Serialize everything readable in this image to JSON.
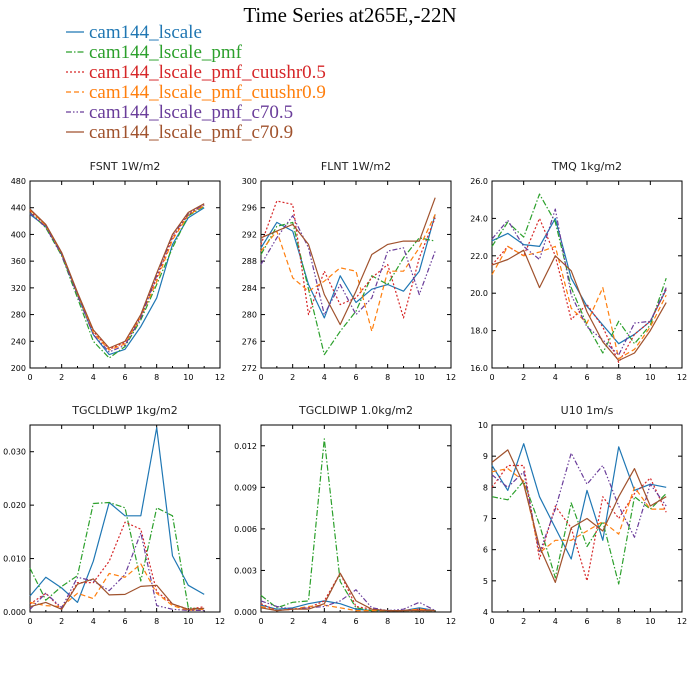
{
  "figure_title": "Time Series at265E,-22N",
  "legend": [
    {
      "label": "cam144_lscale",
      "color": "#1f77b4",
      "dash": "solid"
    },
    {
      "label": "cam144_lscale_pmf",
      "color": "#2ca02c",
      "dash": "dashdot"
    },
    {
      "label": "cam144_lscale_pmf_cuushr0.5",
      "color": "#d62728",
      "dash": "dot"
    },
    {
      "label": "cam144_lscale_pmf_cuushr0.9",
      "color": "#ff7f0e",
      "dash": "dash"
    },
    {
      "label": "cam144_lscale_pmf_c70.5",
      "color": "#6a3d9a",
      "dash": "dashdot2"
    },
    {
      "label": "cam144_lscale_pmf_c70.9",
      "color": "#a0522d",
      "dash": "solid"
    }
  ],
  "chart_data": [
    {
      "type": "line",
      "title": "FSNT   1W/m2",
      "xlim": [
        0,
        12
      ],
      "ylim": [
        200,
        480
      ],
      "xticks": [
        0,
        2,
        4,
        6,
        8,
        10,
        12
      ],
      "yticks": [
        200,
        240,
        280,
        320,
        360,
        400,
        440,
        480
      ],
      "ytick_labels": [
        "200",
        "240",
        "280",
        "320",
        "360",
        "400",
        "440",
        "480"
      ],
      "x": [
        0,
        1,
        2,
        3,
        4,
        5,
        6,
        7,
        8,
        9,
        10,
        11
      ],
      "series": [
        {
          "name": "cam144_lscale",
          "values": [
            430,
            412,
            370,
            310,
            250,
            220,
            228,
            262,
            305,
            385,
            425,
            440
          ]
        },
        {
          "name": "cam144_lscale_pmf",
          "values": [
            433,
            410,
            368,
            305,
            240,
            215,
            232,
            272,
            325,
            380,
            428,
            442
          ]
        },
        {
          "name": "cam144_lscale_pmf_cuushr0.5",
          "values": [
            435,
            414,
            372,
            312,
            255,
            228,
            238,
            278,
            335,
            395,
            430,
            444
          ]
        },
        {
          "name": "cam144_lscale_pmf_cuushr0.9",
          "values": [
            437,
            413,
            371,
            311,
            253,
            227,
            236,
            276,
            330,
            392,
            429,
            443
          ]
        },
        {
          "name": "cam144_lscale_pmf_c70.5",
          "values": [
            432,
            411,
            369,
            309,
            250,
            224,
            234,
            275,
            338,
            398,
            431,
            445
          ]
        },
        {
          "name": "cam144_lscale_pmf_c70.9",
          "values": [
            438,
            415,
            373,
            313,
            257,
            230,
            240,
            280,
            342,
            400,
            433,
            446
          ]
        }
      ]
    },
    {
      "type": "line",
      "title": "FLNT   1W/m2",
      "xlim": [
        0,
        12
      ],
      "ylim": [
        272,
        300
      ],
      "xticks": [
        0,
        2,
        4,
        6,
        8,
        10,
        12
      ],
      "yticks": [
        272,
        276,
        280,
        284,
        288,
        292,
        296,
        300
      ],
      "ytick_labels": [
        "272",
        "276",
        "280",
        "284",
        "288",
        "292",
        "296",
        "300"
      ],
      "x": [
        0,
        1,
        2,
        3,
        4,
        5,
        6,
        7,
        8,
        9,
        10,
        11
      ],
      "series": [
        {
          "name": "cam144_lscale",
          "values": [
            290,
            293.8,
            292.5,
            284.5,
            279.5,
            285.8,
            281.8,
            283.8,
            284.5,
            283.5,
            286.5,
            295
          ]
        },
        {
          "name": "cam144_lscale_pmf",
          "values": [
            289,
            293.2,
            293.8,
            283.8,
            274,
            277.5,
            280.5,
            285.8,
            284.5,
            288.5,
            291.5,
            291
          ]
        },
        {
          "name": "cam144_lscale_pmf_cuushr0.5",
          "values": [
            290.5,
            297,
            296.5,
            280,
            286.5,
            281.5,
            282.5,
            285.5,
            287.5,
            279.5,
            288.5,
            294.5
          ]
        },
        {
          "name": "cam144_lscale_pmf_cuushr0.9",
          "values": [
            289.5,
            292.5,
            285.5,
            283.5,
            285,
            287,
            286.5,
            277.5,
            286.5,
            286.5,
            290,
            295
          ]
        },
        {
          "name": "cam144_lscale_pmf_c70.5",
          "values": [
            287.5,
            291.5,
            294.8,
            290,
            280,
            284.5,
            280,
            282.5,
            289.5,
            290,
            283,
            289.5
          ]
        },
        {
          "name": "cam144_lscale_pmf_c70.9",
          "values": [
            291.5,
            292.5,
            293.5,
            290.5,
            283,
            278.5,
            283.5,
            289,
            290.5,
            291,
            291,
            297.5
          ]
        }
      ]
    },
    {
      "type": "line",
      "title": "TMQ   1kg/m2",
      "xlim": [
        0,
        12
      ],
      "ylim": [
        16,
        26
      ],
      "xticks": [
        0,
        2,
        4,
        6,
        8,
        10,
        12
      ],
      "yticks": [
        16,
        18,
        20,
        22,
        24,
        26
      ],
      "ytick_labels": [
        "16.0",
        "18.0",
        "20.0",
        "22.0",
        "24.0",
        "26.0"
      ],
      "x": [
        0,
        1,
        2,
        3,
        4,
        5,
        6,
        7,
        8,
        9,
        10,
        11
      ],
      "series": [
        {
          "name": "cam144_lscale",
          "values": [
            22.8,
            23.2,
            22.6,
            22.5,
            24,
            20.8,
            19.3,
            18.3,
            17.3,
            17.8,
            18.5,
            20.2
          ]
        },
        {
          "name": "cam144_lscale_pmf",
          "values": [
            22.5,
            23.8,
            23,
            25.3,
            23.8,
            20.3,
            18.3,
            16.8,
            18.5,
            17.3,
            18.3,
            20.8
          ]
        },
        {
          "name": "cam144_lscale_pmf_cuushr0.5",
          "values": [
            21.5,
            22.5,
            22,
            24,
            22,
            18.6,
            19.4,
            18.2,
            16.3,
            17.8,
            18.5,
            20.2
          ]
        },
        {
          "name": "cam144_lscale_pmf_cuushr0.9",
          "values": [
            21,
            22.5,
            22,
            22.2,
            22.5,
            19.2,
            18.4,
            20.3,
            16.5,
            17,
            18.2,
            19.9
          ]
        },
        {
          "name": "cam144_lscale_pmf_c70.5",
          "values": [
            22.9,
            23.9,
            22.5,
            21.8,
            24.5,
            19.9,
            18.2,
            17.5,
            16.7,
            18.4,
            18.5,
            20.3
          ]
        },
        {
          "name": "cam144_lscale_pmf_c70.9",
          "values": [
            21.5,
            21.8,
            22.3,
            20.3,
            22,
            21.2,
            19,
            17.4,
            16.4,
            16.8,
            18,
            19.5
          ]
        }
      ]
    },
    {
      "type": "line",
      "title": "TGCLDLWP   1kg/m2",
      "xlim": [
        0,
        12
      ],
      "ylim": [
        0,
        0.035
      ],
      "xticks": [
        0,
        2,
        4,
        6,
        8,
        10,
        12
      ],
      "yticks": [
        0,
        0.01,
        0.02,
        0.03
      ],
      "ytick_labels": [
        "0.000",
        "0.010",
        "0.020",
        "0.030"
      ],
      "x": [
        0,
        1,
        2,
        3,
        4,
        5,
        6,
        7,
        8,
        9,
        10,
        11
      ],
      "series": [
        {
          "name": "cam144_lscale",
          "values": [
            0.003,
            0.0065,
            0.0045,
            0.0018,
            0.0095,
            0.0205,
            0.018,
            0.018,
            0.0345,
            0.0105,
            0.005,
            0.0033
          ]
        },
        {
          "name": "cam144_lscale_pmf",
          "values": [
            0.0082,
            0.0022,
            0.0048,
            0.0068,
            0.0203,
            0.0205,
            0.0195,
            0.0058,
            0.0195,
            0.018,
            0.0008,
            0.0005
          ]
        },
        {
          "name": "cam144_lscale_pmf_cuushr0.5",
          "values": [
            0.0015,
            0.0035,
            0.0005,
            0.0055,
            0.0055,
            0.0095,
            0.0168,
            0.0155,
            0.0038,
            0.0015,
            0.0005,
            0.001
          ]
        },
        {
          "name": "cam144_lscale_pmf_cuushr0.9",
          "values": [
            0.0018,
            0.0012,
            0.001,
            0.0035,
            0.0025,
            0.0072,
            0.0065,
            0.009,
            0.0035,
            0.0012,
            0.0003,
            0.0005
          ]
        },
        {
          "name": "cam144_lscale_pmf_c70.5",
          "values": [
            0.0005,
            0.0035,
            0.0008,
            0.0065,
            0.0058,
            0.004,
            0.007,
            0.0148,
            0.0012,
            0.0005,
            0.0003,
            0.0003
          ]
        },
        {
          "name": "cam144_lscale_pmf_c70.9",
          "values": [
            0.001,
            0.0018,
            0.0005,
            0.0052,
            0.0062,
            0.0032,
            0.0033,
            0.0048,
            0.005,
            0.0015,
            0.0005,
            0.0007
          ]
        }
      ]
    },
    {
      "type": "line",
      "title": "TGCLDIWP   1.0kg/m2",
      "xlim": [
        0,
        12
      ],
      "ylim": [
        0,
        0.0135
      ],
      "xticks": [
        0,
        2,
        4,
        6,
        8,
        10,
        12
      ],
      "yticks": [
        0,
        0.003,
        0.006,
        0.009,
        0.012
      ],
      "ytick_labels": [
        "0.000",
        "0.003",
        "0.006",
        "0.009",
        "0.012"
      ],
      "x": [
        0,
        1,
        2,
        3,
        4,
        5,
        6,
        7,
        8,
        9,
        10,
        11
      ],
      "series": [
        {
          "name": "cam144_lscale",
          "values": [
            0.0005,
            0.0002,
            0.0003,
            0.0006,
            0.0008,
            0.0006,
            0.0002,
            0.0001,
            0.0001,
            0.0001,
            0.0003,
            0.0001
          ]
        },
        {
          "name": "cam144_lscale_pmf",
          "values": [
            0.0012,
            0.0003,
            0.0007,
            0.0008,
            0.0125,
            0.0022,
            0.0003,
            0.0001,
            0.0001,
            0.0001,
            0.0001,
            0.0001
          ]
        },
        {
          "name": "cam144_lscale_pmf_cuushr0.5",
          "values": [
            0.0006,
            0.0001,
            0.0002,
            0.0003,
            0.0008,
            0.0028,
            0.0004,
            0.0002,
            0.0001,
            0.0001,
            0.0002,
            0.0001
          ]
        },
        {
          "name": "cam144_lscale_pmf_cuushr0.9",
          "values": [
            0.0004,
            0.0001,
            0.0002,
            0.0004,
            0.0005,
            0.0003,
            0.0001,
            0.0001,
            0.0001,
            0.0001,
            0.0002,
            0.0001
          ]
        },
        {
          "name": "cam144_lscale_pmf_c70.5",
          "values": [
            0.0008,
            0.0004,
            0.0002,
            0.0003,
            0.0004,
            0.0008,
            0.0016,
            0.0003,
            0.0001,
            0.0002,
            0.0007,
            0.0001
          ]
        },
        {
          "name": "cam144_lscale_pmf_c70.9",
          "values": [
            0.0003,
            0.0001,
            0.0002,
            0.0002,
            0.0006,
            0.0028,
            0.0008,
            0.0002,
            0.0001,
            0.0001,
            0.0001,
            0.0001
          ]
        }
      ]
    },
    {
      "type": "line",
      "title": "U10   1m/s",
      "xlim": [
        0,
        12
      ],
      "ylim": [
        4,
        10
      ],
      "xticks": [
        0,
        2,
        4,
        6,
        8,
        10,
        12
      ],
      "yticks": [
        4,
        5,
        6,
        7,
        8,
        9,
        10
      ],
      "ytick_labels": [
        "4",
        "5",
        "6",
        "7",
        "8",
        "9",
        "10"
      ],
      "x": [
        0,
        1,
        2,
        3,
        4,
        5,
        6,
        7,
        8,
        9,
        10,
        11
      ],
      "series": [
        {
          "name": "cam144_lscale",
          "values": [
            8.7,
            7.9,
            9.4,
            7.7,
            6.7,
            5.7,
            7.9,
            6.3,
            9.3,
            7.9,
            8.1,
            8.0
          ]
        },
        {
          "name": "cam144_lscale_pmf",
          "values": [
            7.7,
            7.6,
            8.2,
            6.8,
            5.1,
            7.5,
            6.1,
            6.9,
            4.9,
            7.7,
            7.3,
            7.8
          ]
        },
        {
          "name": "cam144_lscale_pmf_cuushr0.5",
          "values": [
            8.0,
            8.7,
            8.7,
            5.7,
            7.4,
            6.7,
            5.0,
            7.7,
            7.0,
            7.8,
            8.3,
            7.2
          ]
        },
        {
          "name": "cam144_lscale_pmf_cuushr0.9",
          "values": [
            8.5,
            8.6,
            8.2,
            5.9,
            6.3,
            6.3,
            6.6,
            6.9,
            6.5,
            8.0,
            7.3,
            7.3
          ]
        },
        {
          "name": "cam144_lscale_pmf_c70.5",
          "values": [
            8.4,
            8.0,
            8.5,
            5.9,
            7.3,
            9.1,
            8.1,
            8.7,
            7.4,
            6.4,
            8.1,
            7.4
          ]
        },
        {
          "name": "cam144_lscale_pmf_c70.9",
          "values": [
            8.8,
            9.2,
            8.1,
            6.1,
            4.95,
            6.7,
            7.0,
            6.6,
            7.7,
            8.6,
            7.4,
            7.7
          ]
        }
      ]
    }
  ]
}
